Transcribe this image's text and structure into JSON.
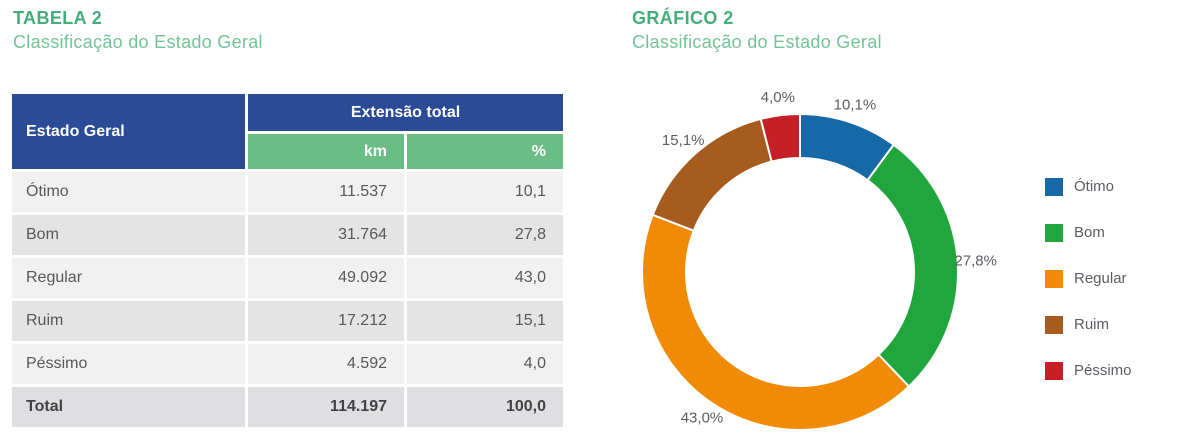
{
  "table_section": {
    "title": "TABELA 2",
    "subtitle": "Classificação do Estado Geral",
    "header": {
      "estado": "Estado Geral",
      "group": "Extensão total",
      "sub": [
        "km",
        "%"
      ]
    },
    "rows": [
      {
        "estado": "Ótimo",
        "km": "11.537",
        "pct": "10,1"
      },
      {
        "estado": "Bom",
        "km": "31.764",
        "pct": "27,8"
      },
      {
        "estado": "Regular",
        "km": "49.092",
        "pct": "43,0"
      },
      {
        "estado": "Ruim",
        "km": "17.212",
        "pct": "15,1"
      },
      {
        "estado": "Péssimo",
        "km": "4.592",
        "pct": "4,0"
      }
    ],
    "total": {
      "estado": "Total",
      "km": "114.197",
      "pct": "100,0"
    }
  },
  "chart_section": {
    "title": "GRÁFICO 2",
    "subtitle": "Classificação do Estado Geral"
  },
  "chart_data": {
    "type": "pie",
    "variant": "donut",
    "title": "GRÁFICO 2 — Classificação do Estado Geral",
    "unit": "%",
    "start_angle_deg": 0,
    "direction": "clockwise",
    "legend_position": "right",
    "categories": [
      "Ótimo",
      "Bom",
      "Regular",
      "Ruim",
      "Péssimo"
    ],
    "values": [
      10.1,
      27.8,
      43.0,
      15.1,
      4.0
    ],
    "labels": [
      "10,1%",
      "27,8%",
      "43,0%",
      "15,1%",
      "4,0%"
    ],
    "colors": [
      "#1668a7",
      "#21a63e",
      "#f18a05",
      "#a65b1f",
      "#c42026"
    ]
  },
  "theme": {
    "title_green": "#45ad7b",
    "subtitle_green": "#72c496",
    "header_blue": "#2b4b97",
    "header_green": "#69bd85",
    "row_light": "#f1f1f2",
    "row_dark": "#e4e4e5",
    "total_row_bg": "#dfdfe1",
    "cell_text": "#58585a",
    "chart_label_text": "#5b5d64"
  }
}
